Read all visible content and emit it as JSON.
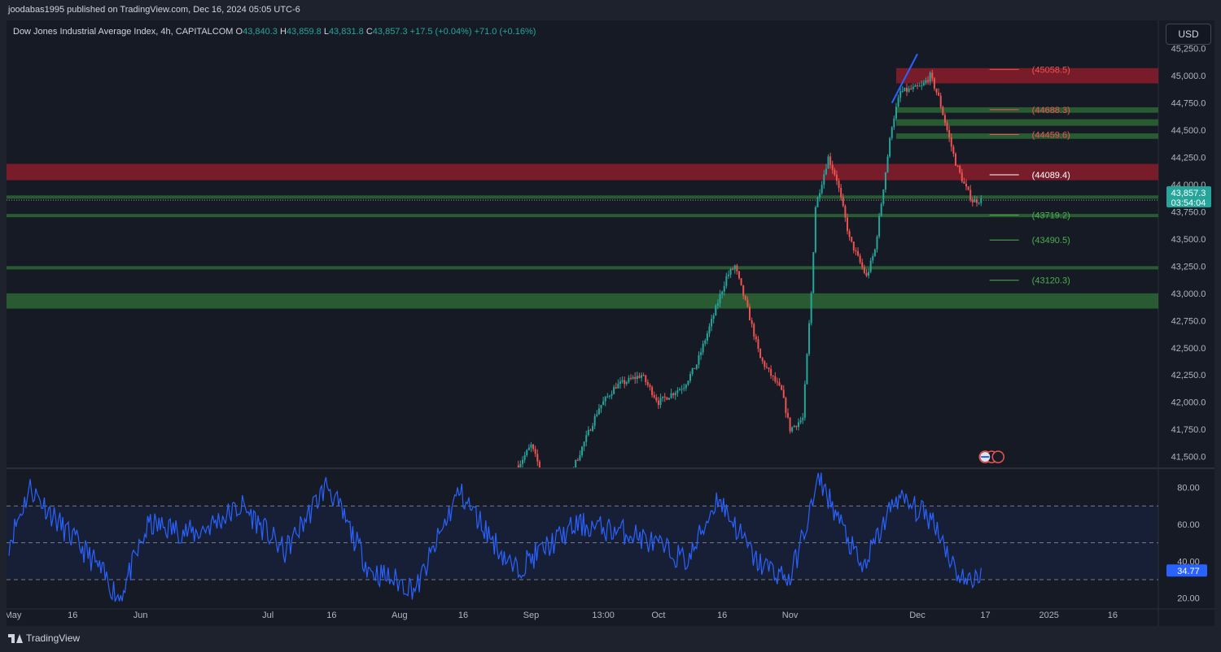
{
  "publish_line": "joodabas1995 published on TradingView.com, Dec 16, 2024 05:05 UTC-6",
  "legend": {
    "symbol": "Dow Jones Industrial Average Index, 4h, CAPITALCOM",
    "o_label": "O",
    "o_value": "43,840.3",
    "h_label": "H",
    "h_value": "43,859.8",
    "l_label": "L",
    "l_value": "43,831.8",
    "c_label": "C",
    "c_value": "43,857.3",
    "change": "+17.5 (+0.04%)",
    "extra": "+71.0 (+0.16%)"
  },
  "currency_button": "USD",
  "footer_brand": "TradingView",
  "colors": {
    "background": "#161a25",
    "up": "#26a69a",
    "down": "#ef5350",
    "resistance_zone": "#8b1d2c",
    "support_zone": "#2e6b36",
    "rsi_line": "#2962ff",
    "trendline": "#2962ff"
  },
  "chart_data": [
    {
      "type": "candlestick",
      "title": "Dow Jones Industrial Average Index, 4h, CAPITALCOM",
      "ylim": [
        41400,
        45300
      ],
      "y_ticks": [
        "41,500.0",
        "41,750.0",
        "42,000.0",
        "42,250.0",
        "42,500.0",
        "42,750.0",
        "43,000.0",
        "43,250.0",
        "43,500.0",
        "43,750.0",
        "44,000.0",
        "44,250.0",
        "44,500.0",
        "44,750.0",
        "45,000.0",
        "45,250.0"
      ],
      "x_ticks": [
        "May",
        "16",
        "Jun",
        "Jul",
        "16",
        "Aug",
        "16",
        "Sep",
        "13:00",
        "Oct",
        "16",
        "Nov",
        "Dec",
        "17",
        "2025",
        "16"
      ],
      "price_path": [
        {
          "date": "2024-08-29",
          "price": 41420
        },
        {
          "date": "2024-09-01",
          "price": 41600
        },
        {
          "date": "2024-09-04",
          "price": 41300
        },
        {
          "date": "2024-09-08",
          "price": 41050
        },
        {
          "date": "2024-09-11",
          "price": 41400
        },
        {
          "date": "2024-09-17",
          "price": 41950
        },
        {
          "date": "2024-09-21",
          "price": 42150
        },
        {
          "date": "2024-09-27",
          "price": 42250
        },
        {
          "date": "2024-10-01",
          "price": 42000
        },
        {
          "date": "2024-10-07",
          "price": 42150
        },
        {
          "date": "2024-10-10",
          "price": 42350
        },
        {
          "date": "2024-10-14",
          "price": 42800
        },
        {
          "date": "2024-10-17",
          "price": 43150
        },
        {
          "date": "2024-10-19",
          "price": 43250
        },
        {
          "date": "2024-10-22",
          "price": 42850
        },
        {
          "date": "2024-10-25",
          "price": 42400
        },
        {
          "date": "2024-10-30",
          "price": 42100
        },
        {
          "date": "2024-11-01",
          "price": 41750
        },
        {
          "date": "2024-11-04",
          "price": 41850
        },
        {
          "date": "2024-11-06",
          "price": 43000
        },
        {
          "date": "2024-11-07",
          "price": 43800
        },
        {
          "date": "2024-11-10",
          "price": 44250
        },
        {
          "date": "2024-11-12",
          "price": 44050
        },
        {
          "date": "2024-11-15",
          "price": 43500
        },
        {
          "date": "2024-11-19",
          "price": 43150
        },
        {
          "date": "2024-11-21",
          "price": 43400
        },
        {
          "date": "2024-11-25",
          "price": 44550
        },
        {
          "date": "2024-11-27",
          "price": 44850
        },
        {
          "date": "2024-12-02",
          "price": 44900
        },
        {
          "date": "2024-12-04",
          "price": 45000
        },
        {
          "date": "2024-12-06",
          "price": 44800
        },
        {
          "date": "2024-12-08",
          "price": 44500
        },
        {
          "date": "2024-12-10",
          "price": 44200
        },
        {
          "date": "2024-12-12",
          "price": 44000
        },
        {
          "date": "2024-12-14",
          "price": 43850
        },
        {
          "date": "2024-12-16",
          "price": 43857.3
        }
      ],
      "zones": [
        {
          "kind": "resistance",
          "from": 44930,
          "to": 45070
        },
        {
          "kind": "resistance",
          "from": 44040,
          "to": 44190
        },
        {
          "kind": "support",
          "from": 44660,
          "to": 44710
        },
        {
          "kind": "support",
          "from": 44540,
          "to": 44600
        },
        {
          "kind": "support",
          "from": 44420,
          "to": 44470
        },
        {
          "kind": "support",
          "from": 43870,
          "to": 43900
        },
        {
          "kind": "support",
          "from": 43700,
          "to": 43730
        },
        {
          "kind": "support",
          "from": 43220,
          "to": 43250
        },
        {
          "kind": "support",
          "from": 42860,
          "to": 43000
        }
      ],
      "annotations": [
        {
          "value": 45058.5,
          "label": "(45058.5)",
          "color": "#ef5350"
        },
        {
          "value": 44688.3,
          "label": "(44688.3)",
          "color": "#ef5350"
        },
        {
          "value": 44459.6,
          "label": "(44459.6)",
          "color": "#ef5350"
        },
        {
          "value": 44089.4,
          "label": "(44089.4)",
          "color": "#ffffff"
        },
        {
          "value": 43719.2,
          "label": "(43719.2)",
          "color": "#4caf50"
        },
        {
          "value": 43490.5,
          "label": "(43490.5)",
          "color": "#4caf50"
        },
        {
          "value": 43120.3,
          "label": "(43120.3)",
          "color": "#4caf50"
        }
      ],
      "trendline": {
        "from": {
          "date": "2024-11-25",
          "price": 44750
        },
        "to": {
          "date": "2024-12-01",
          "price": 45200
        }
      },
      "last_price_label": "43,857.3",
      "countdown_label": "03:54:04",
      "last_price": 43857.3
    },
    {
      "type": "line",
      "series_name": "RSI",
      "ylim": [
        15,
        90
      ],
      "y_ticks": [
        "20.00",
        "40.00",
        "60.00",
        "80.00"
      ],
      "levels": [
        70,
        50,
        30
      ],
      "last_value_label": "34.77",
      "path": [
        {
          "date": "2024-05-01",
          "v": 50
        },
        {
          "date": "2024-05-06",
          "v": 80
        },
        {
          "date": "2024-05-13",
          "v": 60
        },
        {
          "date": "2024-05-21",
          "v": 40
        },
        {
          "date": "2024-05-27",
          "v": 20
        },
        {
          "date": "2024-06-03",
          "v": 60
        },
        {
          "date": "2024-06-14",
          "v": 55
        },
        {
          "date": "2024-06-25",
          "v": 70
        },
        {
          "date": "2024-07-05",
          "v": 45
        },
        {
          "date": "2024-07-15",
          "v": 82
        },
        {
          "date": "2024-07-25",
          "v": 35
        },
        {
          "date": "2024-08-05",
          "v": 25
        },
        {
          "date": "2024-08-15",
          "v": 78
        },
        {
          "date": "2024-08-28",
          "v": 35
        },
        {
          "date": "2024-09-12",
          "v": 60
        },
        {
          "date": "2024-09-25",
          "v": 55
        },
        {
          "date": "2024-10-08",
          "v": 40
        },
        {
          "date": "2024-10-15",
          "v": 75
        },
        {
          "date": "2024-10-24",
          "v": 40
        },
        {
          "date": "2024-11-01",
          "v": 30
        },
        {
          "date": "2024-11-08",
          "v": 85
        },
        {
          "date": "2024-11-18",
          "v": 35
        },
        {
          "date": "2024-11-26",
          "v": 75
        },
        {
          "date": "2024-12-05",
          "v": 62
        },
        {
          "date": "2024-12-10",
          "v": 35
        },
        {
          "date": "2024-12-13",
          "v": 28
        },
        {
          "date": "2024-12-16",
          "v": 34.77
        }
      ]
    }
  ]
}
